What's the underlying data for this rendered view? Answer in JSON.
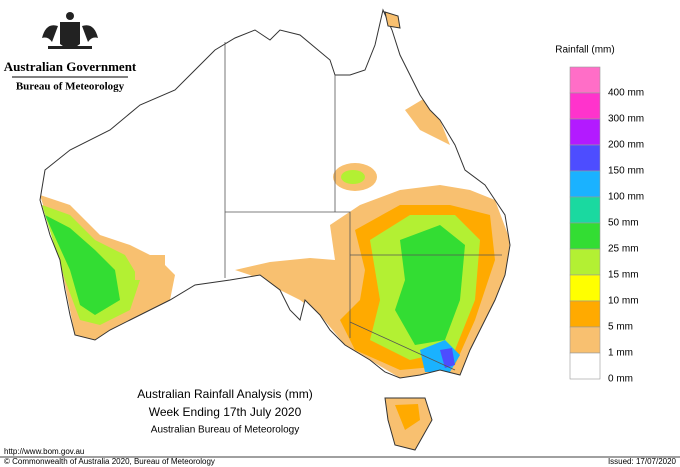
{
  "header": {
    "government": "Australian Government",
    "agency": "Bureau of Meteorology"
  },
  "legend": {
    "title": "Rainfall (mm)",
    "items": [
      {
        "label": "400 mm",
        "color": "#ff6ec7"
      },
      {
        "label": "300 mm",
        "color": "#ff33cc"
      },
      {
        "label": "200 mm",
        "color": "#b31aff"
      },
      {
        "label": "150 mm",
        "color": "#4d4dff"
      },
      {
        "label": "100 mm",
        "color": "#1ab2ff"
      },
      {
        "label": "50 mm",
        "color": "#1ad9a0"
      },
      {
        "label": "25 mm",
        "color": "#33dd33"
      },
      {
        "label": "15 mm",
        "color": "#b3f033"
      },
      {
        "label": "10 mm",
        "color": "#ffff00"
      },
      {
        "label": "5 mm",
        "color": "#ffaa00"
      },
      {
        "label": "1 mm",
        "color": "#f8c070"
      },
      {
        "label": "0 mm",
        "color": "#ffffff"
      }
    ]
  },
  "title": {
    "line1": "Australian Rainfall Analysis (mm)",
    "line2": "Week Ending 17th July 2020",
    "line3": "Australian Bureau of Meteorology"
  },
  "footer": {
    "url": "http://www.bom.gov.au",
    "copyright": "© Commonwealth of Australia 2020, Bureau of Meteorology",
    "issued": "Issued: 17/07/2020"
  }
}
